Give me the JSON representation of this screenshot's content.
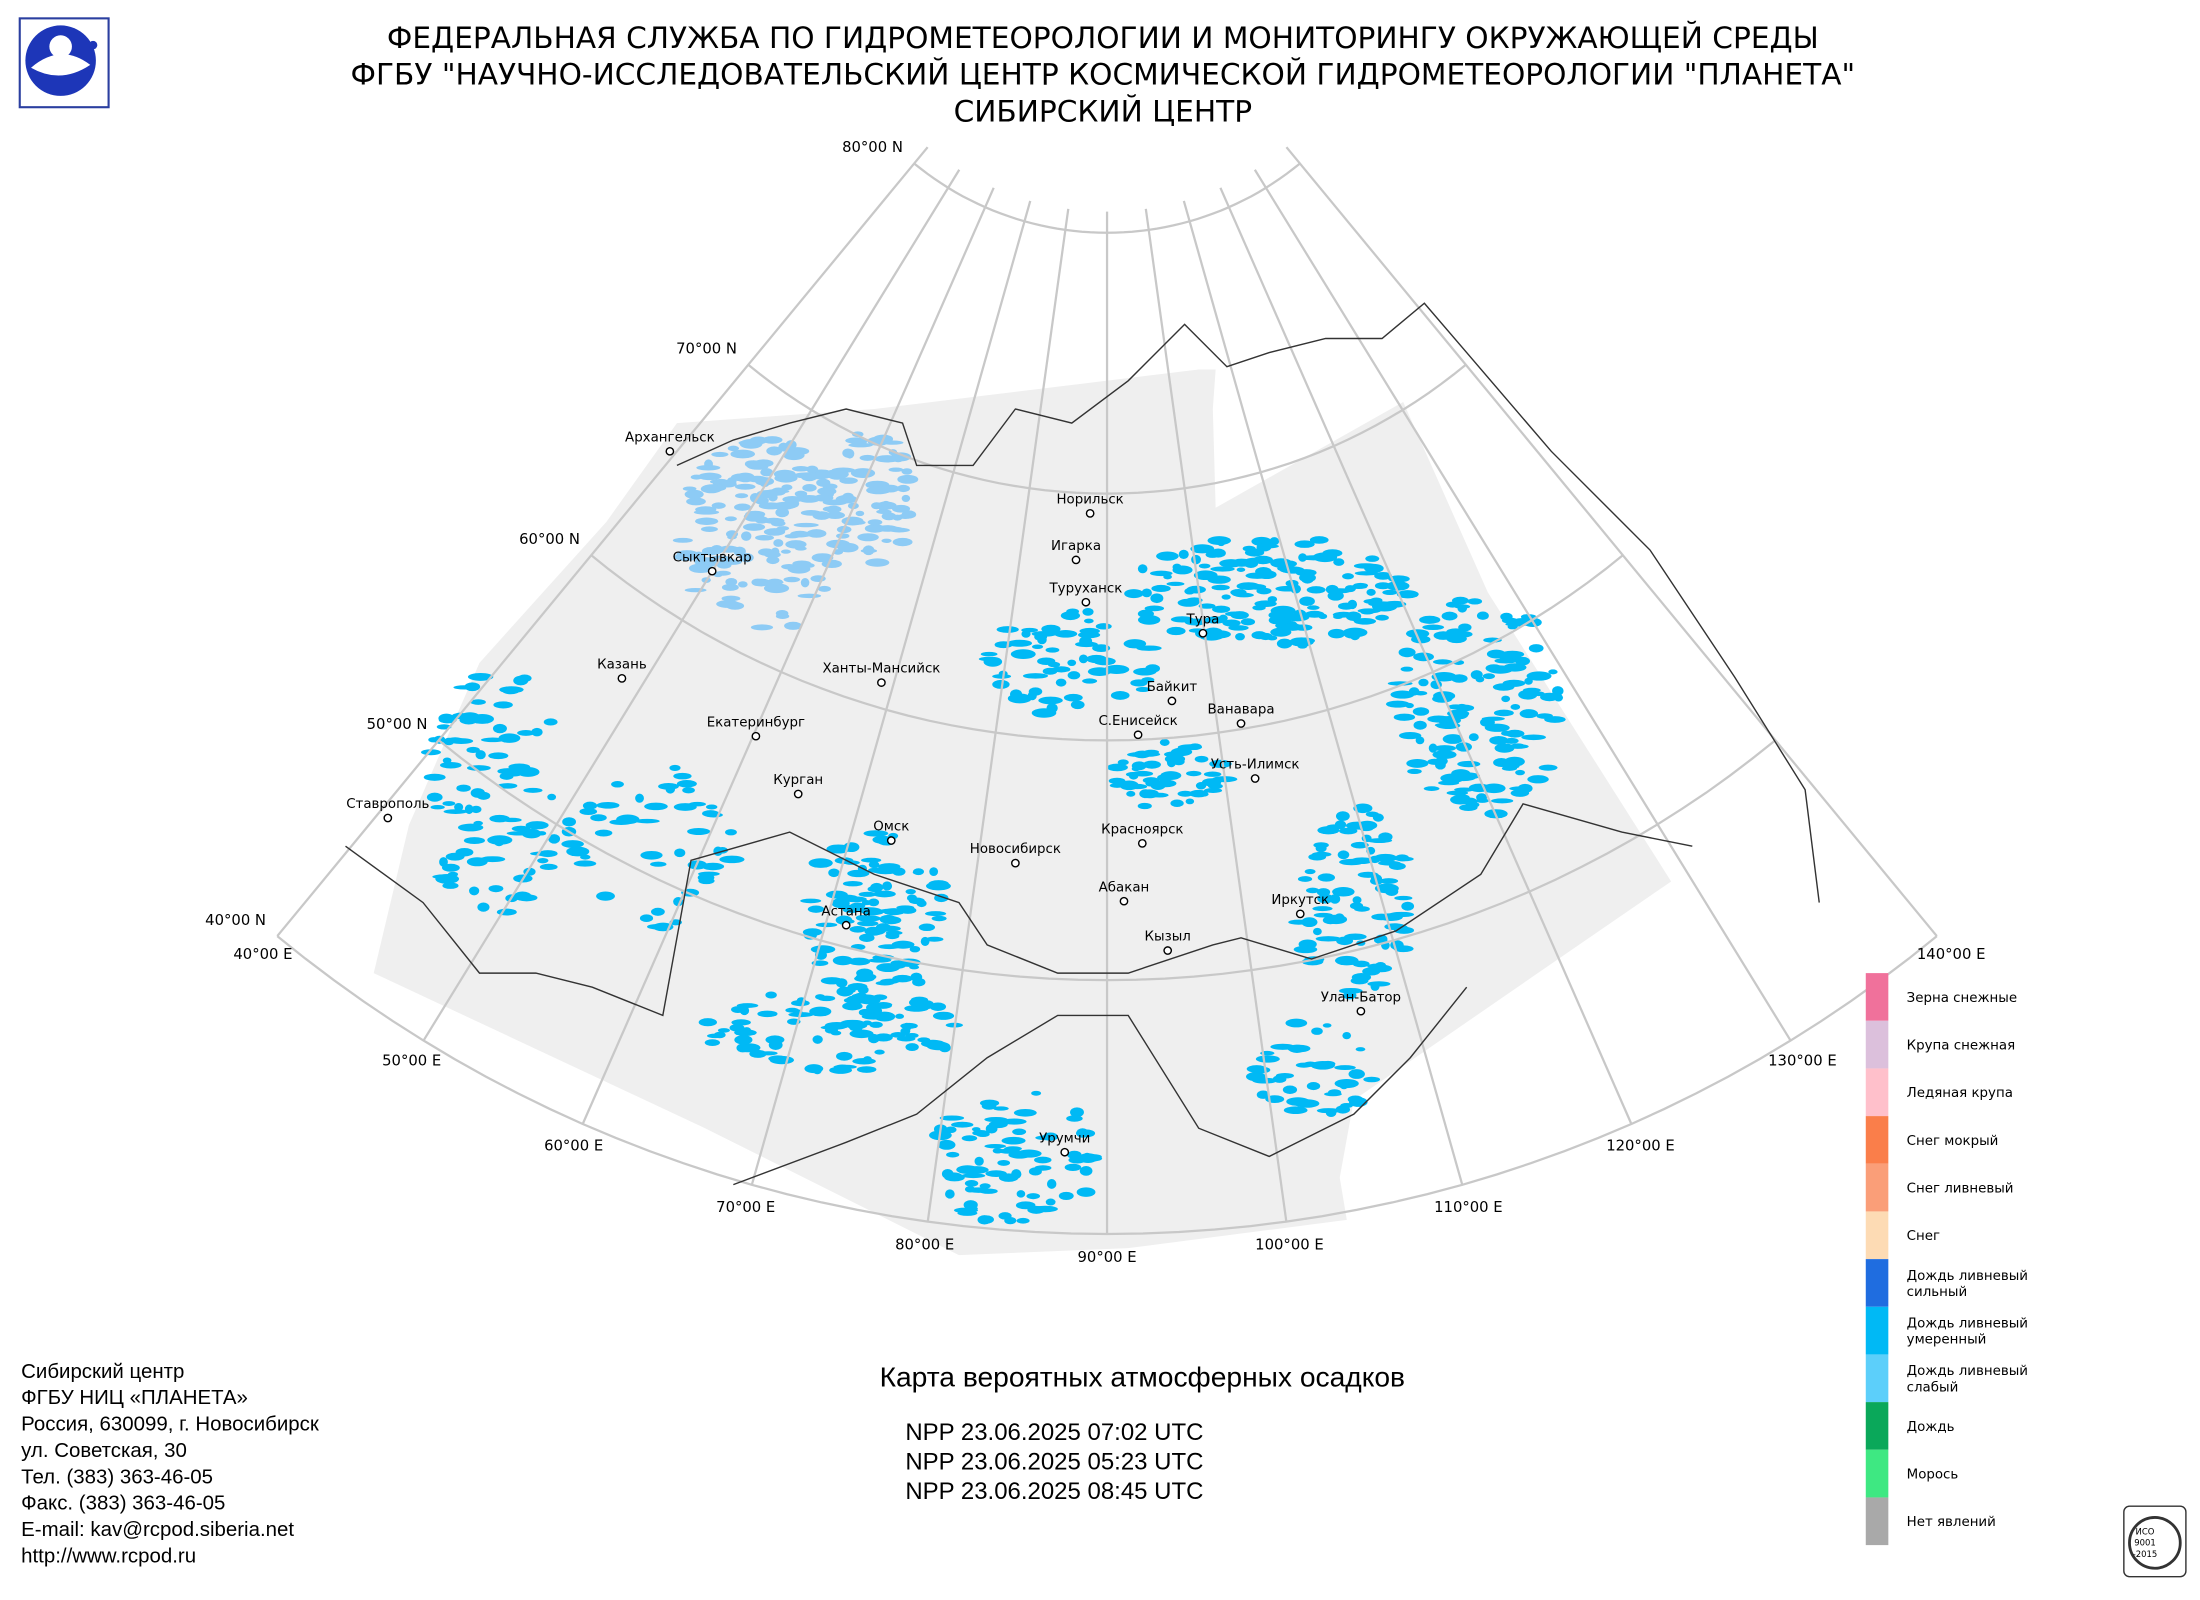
{
  "header": {
    "lines": [
      "ФЕДЕРАЛЬНАЯ СЛУЖБА ПО ГИДРОМЕТЕОРОЛОГИИ И МОНИТОРИНГУ ОКРУЖАЮЩЕЙ СРЕДЫ",
      "ФГБУ \"НАУЧНО-ИССЛЕДОВАТЕЛЬСКИЙ ЦЕНТР КОСМИЧЕСКОЙ ГИДРОМЕТЕОРОЛОГИИ \"ПЛАНЕТА\"",
      "СИБИРСКИЙ ЦЕНТР"
    ]
  },
  "map": {
    "lat_labels": [
      "80°00 N",
      "70°00 N",
      "60°00 N",
      "50°00 N",
      "40°00 N"
    ],
    "lon_labels": [
      "40°00 E",
      "50°00 E",
      "60°00 E",
      "70°00 E",
      "80°00 E",
      "90°00 E",
      "100°00 E",
      "110°00 E",
      "120°00 E",
      "130°00 E",
      "140°00 E"
    ],
    "cities": [
      "Архангельск",
      "Сыктывкар",
      "Казань",
      "Екатеринбург",
      "Ставрополь",
      "Курган",
      "Омск",
      "Астана",
      "Ханты-Мансийск",
      "Новосибирск",
      "Норильск",
      "Игарка",
      "Туруханск",
      "Тура",
      "Байкит",
      "Ванавара",
      "С.Енисейск",
      "Усть-Илимск",
      "Красноярск",
      "Абакан",
      "Кызыл",
      "Иркутск",
      "Улан-Батор",
      "Урумчи"
    ]
  },
  "legend": [
    {
      "label": [
        "Зерна снежные"
      ],
      "color": "#f0719b"
    },
    {
      "label": [
        "Крупа снежная"
      ],
      "color": "#dcc0dc"
    },
    {
      "label": [
        "Ледяная крупа"
      ],
      "color": "#ffc0cb"
    },
    {
      "label": [
        "Снег мокрый"
      ],
      "color": "#fa7e4a"
    },
    {
      "label": [
        "Снег ливневый"
      ],
      "color": "#fa9e78"
    },
    {
      "label": [
        "Снег"
      ],
      "color": "#fddbb4"
    },
    {
      "label": [
        "Дождь ливневый",
        "сильный"
      ],
      "color": "#1f6de0"
    },
    {
      "label": [
        "Дождь ливневый",
        "умеренный"
      ],
      "color": "#00b9f5"
    },
    {
      "label": [
        "Дождь ливневый",
        "слабый"
      ],
      "color": "#5ccffa"
    },
    {
      "label": [
        "Дождь"
      ],
      "color": "#0aa85a"
    },
    {
      "label": [
        "Морось"
      ],
      "color": "#3ee882"
    },
    {
      "label": [
        "Нет явлений"
      ],
      "color": "#a9a9a9"
    }
  ],
  "footer": {
    "contact": [
      "Сибирский центр",
      "ФГБУ НИЦ «ПЛАНЕТА»",
      "Россия, 630099, г. Новосибирск",
      "ул. Советская, 30",
      "Тел. (383) 363-46-05",
      "Факс. (383) 363-46-05",
      "E-mail: kav@rcpod.siberia.net",
      "http://www.rcpod.ru"
    ],
    "map_title": "Карта вероятных атмосферных осадков",
    "passes": [
      "NPP 23.06.2025  07:02 UTC",
      "NPP 23.06.2025  05:23 UTC",
      "NPP 23.06.2025  08:45 UTC"
    ],
    "stamp": [
      "ИСО",
      "9001",
      "-2015"
    ]
  }
}
